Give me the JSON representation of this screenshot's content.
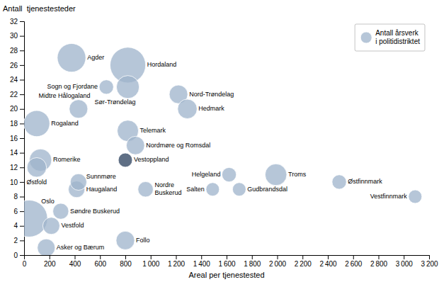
{
  "chart_data": {
    "type": "scatter",
    "x_label": "Areal per tjenestested",
    "y_label": "Antall  tjenestesteder",
    "xlim": [
      0,
      3200
    ],
    "ylim": [
      0,
      32
    ],
    "xticks": [
      0,
      200,
      400,
      600,
      800,
      {
        "value": 1000,
        "label": "1 000"
      },
      {
        "value": 1200,
        "label": "1 200"
      },
      {
        "value": 1400,
        "label": "1 400"
      },
      {
        "value": 1600,
        "label": "1 600"
      },
      {
        "value": 1800,
        "label": "1 800"
      },
      {
        "value": 2000,
        "label": "2 000"
      },
      {
        "value": 2200,
        "label": "2 200"
      },
      {
        "value": 2400,
        "label": "2 400"
      },
      {
        "value": 2600,
        "label": "2 600"
      },
      {
        "value": 2800,
        "label": "2 800"
      },
      {
        "value": 3000,
        "label": "3 000"
      },
      {
        "value": 3200,
        "label": "3 200"
      }
    ],
    "yticks": [
      0,
      2,
      4,
      6,
      8,
      10,
      12,
      14,
      16,
      18,
      20,
      22,
      24,
      26,
      28,
      30,
      32
    ],
    "grid": false,
    "legend": "upper right",
    "series": [
      {
        "name": "Antall årsverk\ni politidistriktet",
        "color": "#9db3cb",
        "labels": [
          "Oslo",
          "Asker og Bærum",
          "Follo",
          "Romerike",
          "Østfold",
          "Vestfold",
          "Søndre Buskerud",
          "Nordre\nBuskerud",
          "Haugaland",
          "Sunnmøre",
          "Rogaland",
          "Hordaland",
          "Sogn og Fjordane",
          "Sør-Trøndelag",
          "Nord-Trøndelag",
          "Hedmark",
          "Midtre Hålogaland",
          "Telemark",
          "Vestoppland",
          "Nordmøre og Romsdal",
          "Agder",
          "Helgeland",
          "Salten",
          "Gudbrandsdal",
          "Troms",
          "Østfinnmark",
          "Vestfinnmark"
        ],
        "x": [
          40,
          175,
          800,
          130,
          100,
          215,
          290,
          960,
          415,
          430,
          100,
          820,
          650,
          820,
          1220,
          1290,
          430,
          820,
          800,
          880,
          375,
          1620,
          1490,
          1700,
          1990,
          2490,
          3090
        ],
        "values": [
          5,
          1,
          2,
          13,
          12,
          4,
          6,
          9,
          9,
          10,
          18,
          26,
          23,
          23,
          22,
          20,
          20,
          17,
          13,
          15,
          27,
          11,
          9,
          9,
          11,
          10,
          8
        ],
        "sizes": [
          1500,
          350,
          380,
          550,
          420,
          320,
          280,
          260,
          300,
          300,
          750,
          1400,
          230,
          580,
          380,
          420,
          380,
          500,
          220,
          370,
          900,
          230,
          200,
          200,
          520,
          230,
          200
        ],
        "colors": [
          "#9db3cb",
          "#9db3cb",
          "#9db3cb",
          "#9db3cb",
          "#9db3cb",
          "#9db3cb",
          "#9db3cb",
          "#9db3cb",
          "#9db3cb",
          "#9db3cb",
          "#9db3cb",
          "#9db3cb",
          "#9db3cb",
          "#9db3cb",
          "#9db3cb",
          "#9db3cb",
          "#9db3cb",
          "#9db3cb",
          "#2a3f5c",
          "#9db3cb",
          "#9db3cb",
          "#9db3cb",
          "#9db3cb",
          "#9db3cb",
          "#9db3cb",
          "#9db3cb",
          "#9db3cb"
        ]
      }
    ]
  }
}
